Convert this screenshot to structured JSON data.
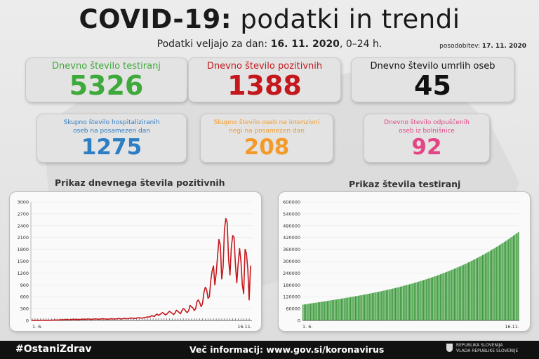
{
  "header": {
    "title_bold": "COVID-19:",
    "title_rest": "podatki in trendi",
    "subtitle_prefix": "Podatki veljajo za dan: ",
    "subtitle_date": "16. 11. 2020",
    "subtitle_suffix": ", 0–24 h.",
    "update_label": "posodobitev: ",
    "update_date": "17. 11. 2020"
  },
  "stats_main": [
    {
      "label": "Dnevno število testiranj",
      "value": "5326",
      "color": "#3faa3c"
    },
    {
      "label": "Dnevno število pozitivnih",
      "value": "1388",
      "color": "#c3181d"
    },
    {
      "label": "Dnevno število umrlih oseb",
      "value": "45",
      "color": "#111111"
    }
  ],
  "stats_secondary": [
    {
      "label_line1": "Skupno število hospitaliziranih",
      "label_line2": "oseb na posamezen dan",
      "value": "1275",
      "color": "#2e7ec4"
    },
    {
      "label_line1": "Skupno število oseb na intenzivni",
      "label_line2": "negi na posamezen dan",
      "value": "208",
      "color": "#f39a2a"
    },
    {
      "label_line1": "Dnevno število odpuščenih",
      "label_line2": "oseb iz bolnišnice",
      "value": "92",
      "color": "#e44586"
    }
  ],
  "chart_data": [
    {
      "type": "line",
      "title": "Prikaz dnevnega števila pozitivnih",
      "ylim": [
        0,
        3000
      ],
      "yticks": [
        0,
        300,
        600,
        900,
        1200,
        1500,
        1800,
        2100,
        2400,
        2700,
        3000
      ],
      "xtick_labels": [
        "1. 6.",
        "16.11."
      ],
      "series_color": "#c3181d",
      "values": [
        2,
        3,
        2,
        5,
        4,
        2,
        3,
        5,
        6,
        4,
        3,
        5,
        4,
        6,
        5,
        8,
        10,
        12,
        9,
        11,
        15,
        18,
        20,
        17,
        22,
        25,
        20,
        18,
        22,
        26,
        30,
        25,
        28,
        24,
        22,
        26,
        30,
        32,
        28,
        30,
        35,
        38,
        30,
        28,
        32,
        36,
        40,
        35,
        30,
        33,
        38,
        42,
        40,
        36,
        33,
        30,
        35,
        40,
        42,
        38,
        35,
        40,
        45,
        50,
        42,
        38,
        45,
        52,
        48,
        44,
        46,
        55,
        60,
        58,
        50,
        52,
        60,
        65,
        70,
        62,
        58,
        66,
        72,
        80,
        90,
        85,
        95,
        120,
        110,
        100,
        140,
        160,
        130,
        150,
        180,
        200,
        170,
        140,
        160,
        200,
        230,
        200,
        180,
        150,
        190,
        260,
        230,
        200,
        170,
        250,
        300,
        280,
        220,
        200,
        260,
        380,
        340,
        320,
        250,
        300,
        480,
        520,
        450,
        350,
        420,
        700,
        840,
        780,
        560,
        600,
        1000,
        1250,
        1380,
        900,
        1200,
        1650,
        2050,
        1900,
        1050,
        1350,
        2300,
        2580,
        2480,
        1550,
        1150,
        1850,
        2150,
        2100,
        1400,
        950,
        1450,
        1820,
        1500,
        900,
        680,
        1800,
        1700,
        1300,
        520,
        1388
      ]
    },
    {
      "type": "bar",
      "title": "Prikaz števila testiranj",
      "ylim": [
        0,
        600000
      ],
      "yticks": [
        0,
        60000,
        120000,
        180000,
        240000,
        300000,
        360000,
        420000,
        480000,
        540000,
        600000
      ],
      "xtick_labels": [
        "1. 6.",
        "16.11."
      ],
      "series_color": "#3a9a3a",
      "start_value": 80000,
      "end_value": 448000
    }
  ],
  "footer": {
    "hashtag": "#OstaniZdrav",
    "info_prefix": "Več informacij: ",
    "info_url": "www.gov.si/koronavirus",
    "gov_line1": "REPUBLIKA SLOVENIJA",
    "gov_line2": "VLADA REPUBLIKE SLOVENIJE"
  }
}
